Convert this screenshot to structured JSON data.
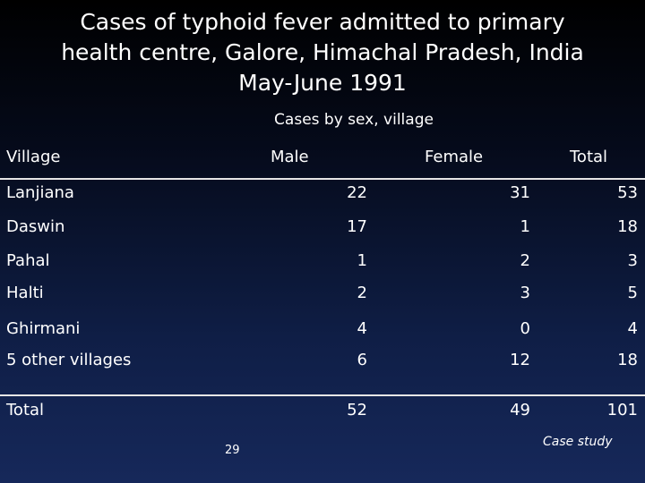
{
  "title": {
    "line1": "Cases of typhoid fever admitted to primary",
    "line2": "health centre, Galore, Himachal Pradesh, India",
    "line3": "May-June 1991"
  },
  "subtitle": "Cases by sex, village",
  "columns": {
    "village": "Village",
    "male": "Male",
    "female": "Female",
    "total": "Total"
  },
  "rows": [
    {
      "village": "Lanjiana",
      "male": "22",
      "female": "31",
      "total": "53"
    },
    {
      "village": "Daswin",
      "male": "17",
      "female": "1",
      "total": "18"
    },
    {
      "village": "Pahal",
      "male": "1",
      "female": "2",
      "total": "3"
    },
    {
      "village": "Halti",
      "male": "2",
      "female": "3",
      "total": "5"
    },
    {
      "village": "Ghirmani",
      "male": "4",
      "female": "0",
      "total": "4"
    },
    {
      "village": "5 other villages",
      "male": "6",
      "female": "12",
      "total": "18"
    }
  ],
  "totals": {
    "label": "Total",
    "male": "52",
    "female": "49",
    "total": "101"
  },
  "page_number": "29",
  "footer_label": "Case study"
}
